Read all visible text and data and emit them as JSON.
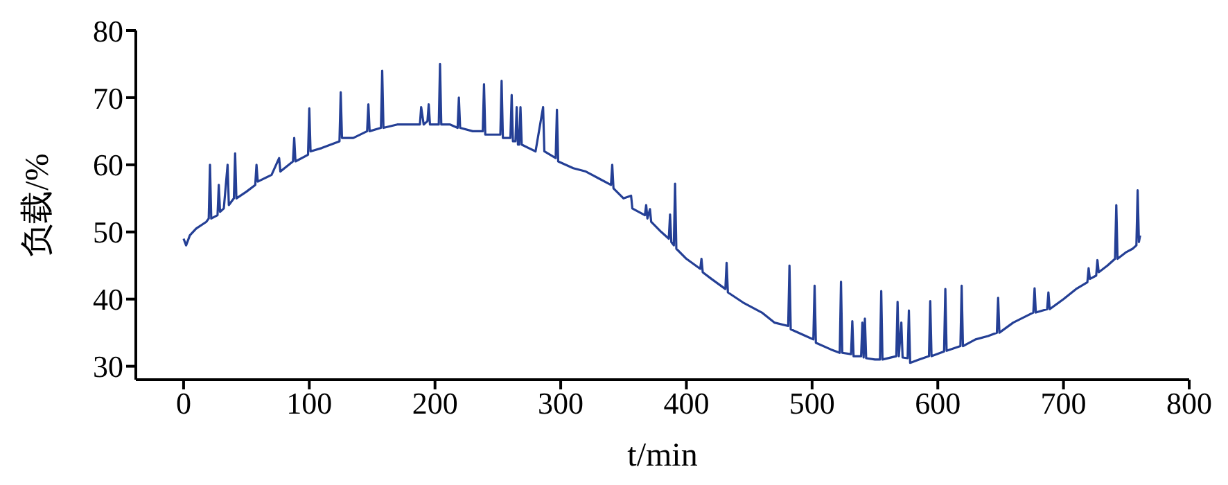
{
  "chart_data": {
    "type": "line",
    "xlabel": "t/min",
    "ylabel": "负载/%",
    "xlim": [
      -38,
      800
    ],
    "xticks": [
      0,
      100,
      200,
      300,
      400,
      500,
      600,
      700,
      800
    ],
    "ylim": [
      28,
      80
    ],
    "yticks": [
      30,
      40,
      50,
      60,
      70,
      80
    ],
    "grid": false,
    "marker": "none",
    "line_style": "solid",
    "series": [
      {
        "color": "#243f95",
        "x": [
          0,
          2,
          5,
          10,
          18,
          20,
          21,
          22,
          27,
          28,
          29,
          32,
          35,
          36,
          40,
          41,
          42,
          50,
          57,
          58,
          59,
          70,
          76,
          77,
          87,
          88,
          89,
          99,
          100,
          101,
          110,
          124,
          125,
          126,
          135,
          146,
          147,
          148,
          157,
          158,
          159,
          170,
          180,
          188,
          189,
          191,
          194,
          195,
          196,
          203,
          204,
          205,
          212,
          218,
          219,
          220,
          230,
          238,
          239,
          240,
          252,
          253,
          254,
          260,
          261,
          262,
          264,
          265,
          266,
          267,
          268,
          269,
          280,
          286,
          287,
          296,
          297,
          298,
          310,
          320,
          330,
          340,
          341,
          342,
          350,
          356,
          357,
          367,
          368,
          369,
          371,
          372,
          380,
          386,
          387,
          388,
          390,
          391,
          392,
          400,
          411,
          412,
          413,
          420,
          431,
          432,
          433,
          445,
          460,
          470,
          481,
          482,
          483,
          495,
          501,
          502,
          503,
          515,
          522,
          523,
          524,
          531,
          532,
          533,
          539,
          540,
          541,
          542,
          543,
          550,
          554,
          555,
          556,
          567,
          568,
          569,
          571,
          572,
          576,
          577,
          578,
          585,
          593,
          594,
          595,
          605,
          606,
          607,
          618,
          619,
          620,
          630,
          640,
          647,
          648,
          649,
          660,
          676,
          677,
          678,
          687,
          688,
          689,
          700,
          710,
          719,
          720,
          721,
          726,
          727,
          728,
          735,
          741,
          742,
          743,
          750,
          755,
          758,
          759,
          760,
          761
        ],
        "values": [
          49,
          48,
          49.5,
          50.5,
          51.5,
          52,
          60,
          52,
          52.5,
          57,
          53,
          53.5,
          60,
          54,
          55,
          61.7,
          55,
          56,
          57,
          60,
          57.5,
          58.5,
          61,
          59,
          60.5,
          64,
          60.5,
          61.5,
          68.4,
          62,
          62.5,
          63.5,
          70.8,
          64,
          64,
          65,
          69,
          65,
          65.5,
          74,
          65.5,
          66,
          66,
          66,
          68.6,
          66,
          66.5,
          69,
          66,
          66,
          75,
          66,
          66,
          65.5,
          70,
          65.5,
          65,
          65,
          72,
          64.5,
          64.5,
          72.5,
          64,
          64,
          70.4,
          63.5,
          63.5,
          68.6,
          63,
          63,
          68.6,
          63,
          62,
          68.6,
          62,
          61,
          68.2,
          60.5,
          59.5,
          59,
          58,
          57,
          60,
          56.5,
          55,
          55.4,
          53.5,
          52.5,
          54,
          52,
          53.4,
          51.5,
          50,
          49,
          52.6,
          48.5,
          48,
          57.2,
          47.5,
          46,
          44.5,
          46,
          44,
          43,
          41.5,
          45.4,
          41,
          39.5,
          38,
          36.5,
          36,
          45,
          35.5,
          34.5,
          34,
          42,
          33.5,
          32.5,
          32,
          42.6,
          32,
          31.8,
          36.7,
          31.5,
          31.5,
          36.5,
          31.3,
          37.1,
          31.2,
          31,
          31,
          41.2,
          31,
          31.5,
          39.6,
          31.5,
          36.5,
          31.3,
          31.2,
          38.3,
          30.5,
          31,
          31.5,
          39.7,
          31.5,
          32.2,
          41.5,
          32.3,
          33,
          42,
          33,
          34,
          34.5,
          35,
          40.2,
          35,
          36.5,
          38,
          41.6,
          38,
          38.5,
          41,
          38.5,
          40,
          41.5,
          42.5,
          44.6,
          43,
          43.5,
          45.8,
          44,
          45,
          46,
          54,
          46,
          47,
          47.5,
          48,
          56.2,
          48.5,
          49.5
        ]
      }
    ]
  }
}
